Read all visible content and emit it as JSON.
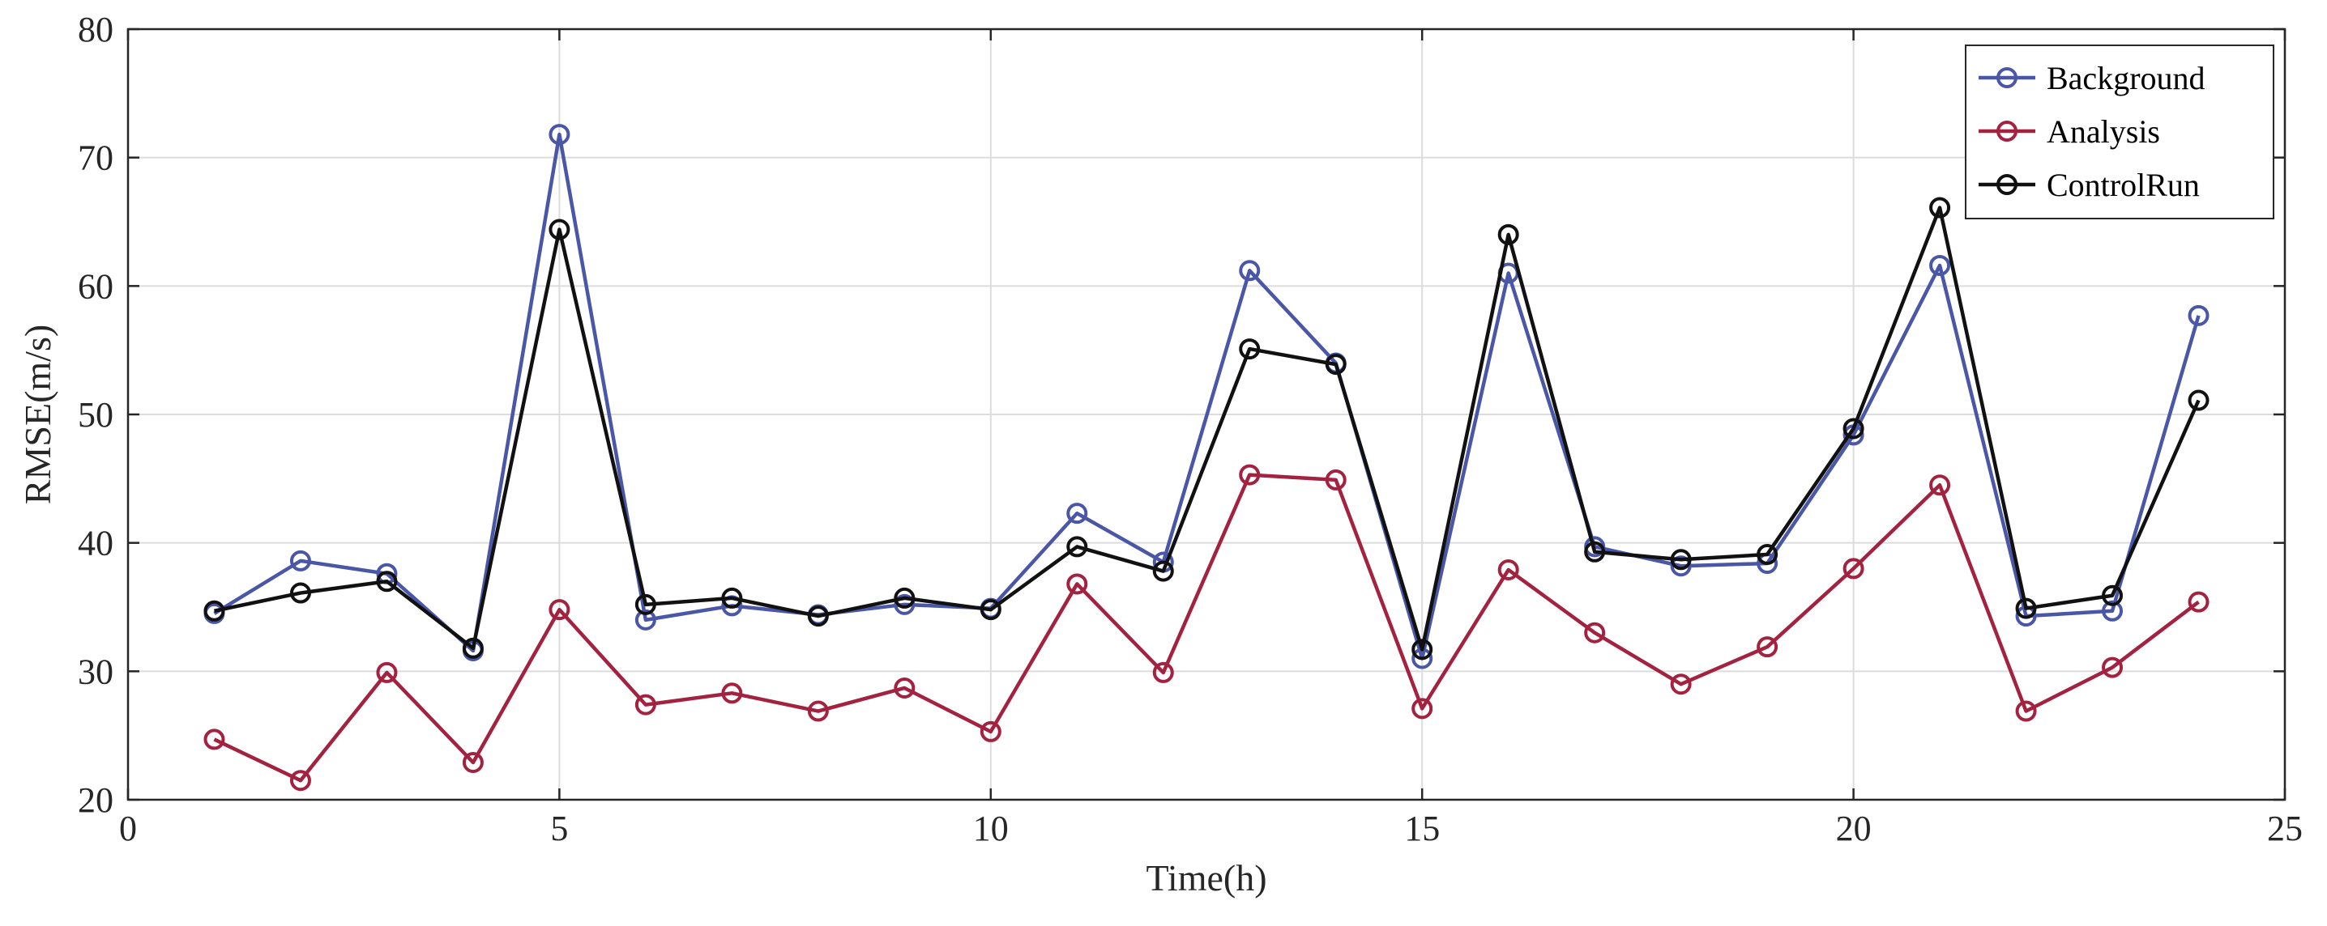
{
  "chart_data": {
    "type": "line",
    "title": "",
    "xlabel": "Time(h)",
    "ylabel": "RMSE(m/s)",
    "xlim": [
      0,
      25
    ],
    "ylim": [
      20,
      80
    ],
    "xticks": [
      0,
      5,
      10,
      15,
      20,
      25
    ],
    "yticks": [
      20,
      30,
      40,
      50,
      60,
      70,
      80
    ],
    "grid": true,
    "legend_position": "top-right",
    "x": [
      1,
      2,
      3,
      4,
      5,
      6,
      7,
      8,
      9,
      10,
      11,
      12,
      13,
      14,
      15,
      16,
      17,
      18,
      19,
      20,
      21,
      22,
      23,
      24
    ],
    "series": [
      {
        "name": "Background",
        "color": "#4a56a6",
        "values": [
          34.5,
          38.6,
          37.6,
          31.6,
          71.8,
          34.0,
          35.1,
          34.4,
          35.2,
          34.9,
          42.3,
          38.5,
          61.2,
          54.0,
          31.0,
          61.0,
          39.7,
          38.2,
          38.4,
          48.4,
          61.6,
          34.3,
          34.7,
          57.7
        ]
      },
      {
        "name": "Analysis",
        "color": "#a3223f",
        "values": [
          24.7,
          21.5,
          29.9,
          22.9,
          34.8,
          27.4,
          28.3,
          26.9,
          28.7,
          25.3,
          36.8,
          29.9,
          45.3,
          44.9,
          27.1,
          37.9,
          33.0,
          29.0,
          31.9,
          38.0,
          44.5,
          26.9,
          30.3,
          35.4
        ]
      },
      {
        "name": "ControlRun",
        "color": "#111111",
        "values": [
          34.7,
          36.1,
          37.0,
          31.8,
          64.4,
          35.2,
          35.7,
          34.3,
          35.7,
          34.8,
          39.7,
          37.8,
          55.1,
          53.9,
          31.7,
          64.0,
          39.3,
          38.7,
          39.1,
          48.9,
          66.1,
          34.9,
          35.9,
          51.1
        ]
      }
    ]
  }
}
